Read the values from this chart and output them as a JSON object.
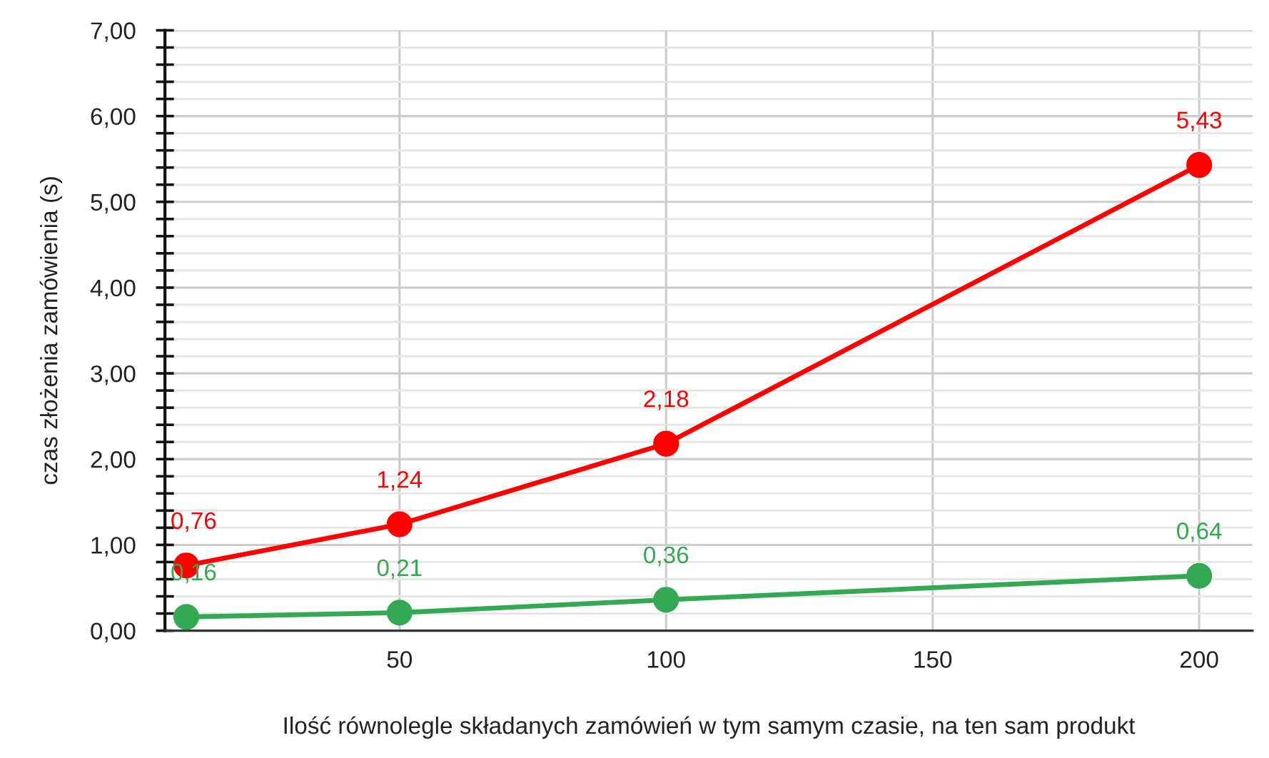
{
  "chart_data": {
    "type": "line",
    "xlabel": "Ilość równolegle składanych zamówień w tym samym czasie, na ten sam produkt",
    "ylabel": "czas złożenia zamówienia (s)",
    "x": [
      10,
      50,
      100,
      200
    ],
    "series": [
      {
        "color": "#ff0000",
        "values": [
          0.76,
          1.24,
          2.18,
          5.43
        ],
        "value_labels": [
          "0,76",
          "1,24",
          "2,18",
          "5,43"
        ]
      },
      {
        "color": "#34a853",
        "values": [
          0.16,
          0.21,
          0.36,
          0.64
        ],
        "value_labels": [
          "0,16",
          "0,21",
          "0,36",
          "0,64"
        ]
      }
    ],
    "xlim": [
      6,
      210
    ],
    "xticks": [
      50,
      100,
      150,
      200
    ],
    "ylim": [
      0,
      7
    ],
    "yticks": [
      {
        "value": 0,
        "label": "0,00"
      },
      {
        "value": 0.2,
        "label": null
      },
      {
        "value": 0.4,
        "label": null
      },
      {
        "value": 0.6,
        "label": null
      },
      {
        "value": 0.8,
        "label": null
      },
      {
        "value": 1,
        "label": "1,00"
      },
      {
        "value": 1.2,
        "label": null
      },
      {
        "value": 1.4,
        "label": null
      },
      {
        "value": 1.6,
        "label": null
      },
      {
        "value": 1.8,
        "label": null
      },
      {
        "value": 2,
        "label": "2,00"
      },
      {
        "value": 2.2,
        "label": null
      },
      {
        "value": 2.4,
        "label": null
      },
      {
        "value": 2.6,
        "label": null
      },
      {
        "value": 2.8,
        "label": null
      },
      {
        "value": 3,
        "label": "3,00"
      },
      {
        "value": 3.2,
        "label": null
      },
      {
        "value": 3.4,
        "label": null
      },
      {
        "value": 3.6,
        "label": null
      },
      {
        "value": 3.8,
        "label": null
      },
      {
        "value": 4,
        "label": "4,00"
      },
      {
        "value": 4.2,
        "label": null
      },
      {
        "value": 4.4,
        "label": null
      },
      {
        "value": 4.6,
        "label": null
      },
      {
        "value": 4.8,
        "label": null
      },
      {
        "value": 5,
        "label": "5,00"
      },
      {
        "value": 5.2,
        "label": null
      },
      {
        "value": 5.4,
        "label": null
      },
      {
        "value": 5.6,
        "label": null
      },
      {
        "value": 5.8,
        "label": null
      },
      {
        "value": 6,
        "label": "6,00"
      },
      {
        "value": 6.2,
        "label": null
      },
      {
        "value": 6.4,
        "label": null
      },
      {
        "value": 6.6,
        "label": null
      },
      {
        "value": 6.8,
        "label": null
      },
      {
        "value": 7,
        "label": "7,00"
      }
    ],
    "grid": true,
    "marker": "circle",
    "line_style": "solid"
  }
}
